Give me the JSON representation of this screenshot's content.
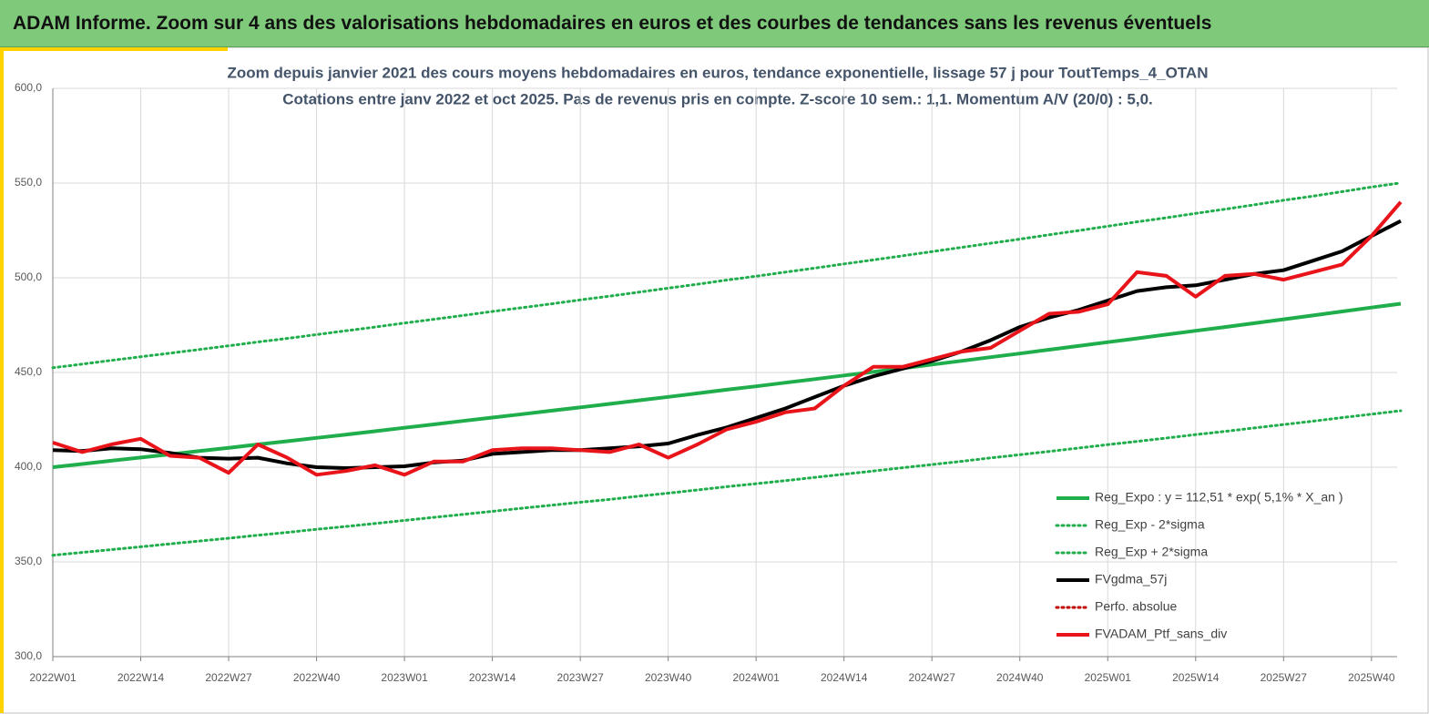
{
  "header": {
    "title": "ADAM Informe. Zoom sur 4 ans des valorisations hebdomadaires en euros et des courbes de tendances sans les revenus éventuels"
  },
  "chart_data": {
    "type": "line",
    "subtitle": [
      "Zoom depuis janvier 2021 des cours moyens hebdomadaires  en euros, tendance exponentielle, lissage 57 j pour ToutTemps_4_OTAN",
      "Cotations entre janv 2022 et oct 2025. Pas de revenus pris en compte. Z-score 10 sem.: 1,1. Momentum A/V (20/0) : 5,0."
    ],
    "categories": [
      "2022W01",
      null,
      null,
      "2022W14",
      null,
      null,
      "2022W27",
      null,
      null,
      "2022W40",
      null,
      null,
      "2023W01",
      null,
      null,
      "2023W14",
      null,
      null,
      "2023W27",
      null,
      null,
      "2023W40",
      null,
      null,
      "2024W01",
      null,
      null,
      "2024W14",
      null,
      null,
      "2024W27",
      null,
      null,
      "2024W40",
      null,
      null,
      "2025W01",
      null,
      null,
      "2025W14",
      null,
      null,
      "2025W27",
      null,
      null,
      "2025W40",
      null
    ],
    "ylim": [
      300,
      600
    ],
    "yticks": [
      {
        "value": 300,
        "label": "300,0"
      },
      {
        "value": 350,
        "label": "350,0"
      },
      {
        "value": 400,
        "label": "400,0"
      },
      {
        "value": 450,
        "label": "450,0"
      },
      {
        "value": 500,
        "label": "500,0"
      },
      {
        "value": 550,
        "label": "550,0"
      },
      {
        "value": 600,
        "label": "600,0"
      }
    ],
    "grid": true,
    "legend": "lower right",
    "series": [
      {
        "name": "Reg_Expo : y = 112,51 * exp( 5,1% *  X_an )",
        "color": "#1fae4b",
        "style": "solid",
        "values": [
          400.0,
          401.7,
          403.4,
          405.1,
          406.8,
          408.5,
          410.2,
          412.0,
          413.7,
          415.5,
          417.2,
          419.0,
          420.8,
          422.6,
          424.4,
          426.2,
          428.0,
          429.8,
          431.6,
          433.4,
          435.3,
          437.1,
          439.0,
          440.9,
          442.7,
          444.6,
          446.5,
          448.4,
          450.3,
          452.2,
          454.2,
          456.1,
          458.1,
          460.0,
          462.0,
          464.0,
          466.0,
          468.0,
          470.0,
          472.0,
          474.0,
          476.0,
          478.1,
          480.1,
          482.2,
          484.3,
          486.3
        ]
      },
      {
        "name": "Reg_Exp - 2*sigma",
        "color": "#1fae4b",
        "style": "dotted",
        "values": [
          353.5,
          355.0,
          356.5,
          358.0,
          359.5,
          361.0,
          362.5,
          364.1,
          365.6,
          367.2,
          368.7,
          370.3,
          371.9,
          373.5,
          375.1,
          376.7,
          378.3,
          379.9,
          381.5,
          383.0,
          384.7,
          386.3,
          388.0,
          389.7,
          391.3,
          392.9,
          394.6,
          396.3,
          398.0,
          399.7,
          401.4,
          403.1,
          404.9,
          406.6,
          408.3,
          410.1,
          411.9,
          413.6,
          415.4,
          417.2,
          418.9,
          420.7,
          422.5,
          424.3,
          426.2,
          428.0,
          429.8
        ]
      },
      {
        "name": "Reg_Exp + 2*sigma",
        "color": "#1fae4b",
        "style": "dotted",
        "values": [
          452.5,
          454.4,
          456.4,
          458.3,
          460.2,
          462.1,
          464.1,
          466.1,
          468.0,
          470.0,
          472.0,
          474.0,
          476.1,
          478.1,
          480.1,
          482.2,
          484.2,
          486.2,
          488.3,
          490.3,
          492.4,
          494.5,
          496.6,
          498.8,
          500.8,
          503.0,
          505.1,
          507.3,
          509.4,
          511.6,
          513.8,
          516.0,
          518.2,
          520.4,
          522.7,
          524.9,
          527.2,
          529.5,
          531.7,
          534.0,
          536.2,
          538.5,
          540.9,
          543.1,
          545.5,
          547.9,
          550.1
        ]
      },
      {
        "name": "FVgdma_57j",
        "color": "#000000",
        "style": "solid",
        "values": [
          409,
          408.5,
          410,
          409.5,
          407.5,
          405,
          404.5,
          405,
          402,
          400,
          399.5,
          400,
          400.5,
          402.5,
          403.5,
          407,
          408,
          409,
          409,
          410,
          411,
          412.5,
          417,
          421,
          426,
          431,
          437,
          443,
          448,
          452,
          456,
          461,
          467,
          474,
          479,
          483,
          488,
          493,
          495,
          496,
          499,
          502,
          504,
          509,
          514,
          522,
          530
        ]
      },
      {
        "name": "Perfo. absolue",
        "color": "#c00000",
        "style": "dotted",
        "values": [
          null,
          null,
          null,
          null,
          null,
          null,
          null,
          null,
          null,
          null,
          null,
          null,
          null,
          null,
          null,
          null,
          null,
          null,
          null,
          null,
          null,
          null,
          null,
          null,
          null,
          null,
          null,
          null,
          null,
          null,
          null,
          null,
          null,
          null,
          null,
          null,
          null,
          null,
          null,
          null,
          null,
          null,
          null,
          null,
          null,
          null,
          null
        ]
      },
      {
        "name": "FVADAM_Ptf_sans_div",
        "color": "#e8141a",
        "style": "solid",
        "values": [
          413,
          408,
          412,
          415,
          406,
          405,
          397,
          412,
          405,
          396,
          398,
          401,
          396,
          403,
          403,
          409,
          410,
          410,
          409,
          408,
          412,
          405,
          412,
          420,
          424,
          429,
          431,
          443,
          453,
          453,
          457,
          461,
          463,
          472,
          481,
          482,
          486,
          503,
          501,
          490,
          501,
          502,
          499,
          503,
          507,
          522,
          540
        ]
      }
    ]
  }
}
